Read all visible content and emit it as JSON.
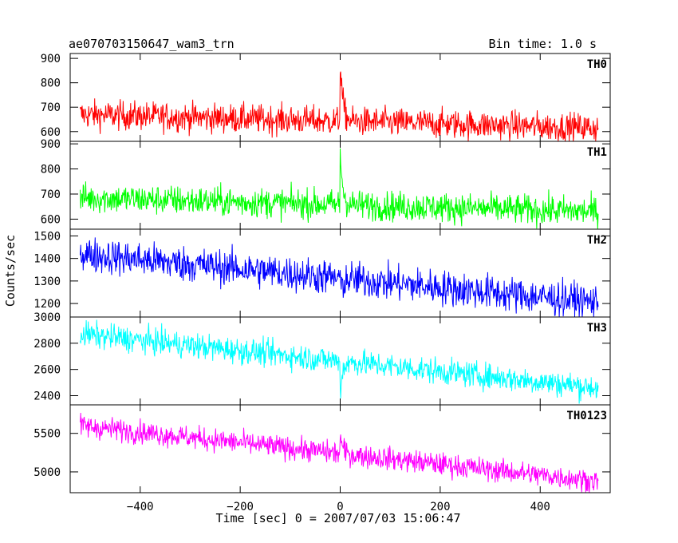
{
  "header": {
    "title": "ae070703150647_wam3_trn",
    "bin_time": "Bin time: 1.0 s"
  },
  "chart_data": {
    "type": "line",
    "xlabel": "Time [sec] 0 = 2007/07/03 15:06:47",
    "ylabel": "Counts/sec",
    "xlim": [
      -540,
      540
    ],
    "x_ticks": [
      -400,
      -200,
      0,
      200,
      400
    ],
    "x_tick_labels": [
      "−400",
      "−200",
      "0",
      "200",
      "400"
    ],
    "x_sample_range": [
      -520,
      516
    ],
    "trigger_time": 0,
    "panels": [
      {
        "name": "TH0",
        "color": "#ff0000",
        "ylim": [
          560,
          920
        ],
        "y_ticks": [
          600,
          700,
          800,
          900
        ],
        "y_tick_labels": [
          "600",
          "700",
          "800",
          "900"
        ],
        "baseline_start": 670,
        "baseline_end": 615,
        "noise": 30,
        "peak": 920
      },
      {
        "name": "TH1",
        "color": "#00ff00",
        "ylim": [
          560,
          910
        ],
        "y_ticks": [
          600,
          700,
          800,
          900
        ],
        "y_tick_labels": [
          "600",
          "700",
          "800",
          "900"
        ],
        "baseline_start": 685,
        "baseline_end": 630,
        "noise": 30,
        "peak": 900
      },
      {
        "name": "TH2",
        "color": "#0000ff",
        "ylim": [
          1140,
          1530
        ],
        "y_ticks": [
          1200,
          1300,
          1400,
          1500
        ],
        "y_tick_labels": [
          "1200",
          "1300",
          "1400",
          "1500"
        ],
        "baseline_start": 1420,
        "baseline_end": 1205,
        "noise": 40,
        "peak": 1370
      },
      {
        "name": "TH3",
        "color": "#00ffff",
        "ylim": [
          2330,
          3000
        ],
        "y_ticks": [
          2400,
          2600,
          2800,
          3000
        ],
        "y_tick_labels": [
          "2400",
          "2600",
          "2800",
          "3000"
        ],
        "baseline_start": 2870,
        "baseline_end": 2460,
        "noise": 50,
        "peak": 2640
      },
      {
        "name": "TH0123",
        "color": "#ff00ff",
        "ylim": [
          4730,
          5870
        ],
        "y_ticks": [
          5000,
          5500
        ],
        "y_tick_labels": [
          "5000",
          "5500"
        ],
        "baseline_start": 5600,
        "baseline_end": 4880,
        "noise": 75,
        "peak": 5820
      }
    ]
  }
}
